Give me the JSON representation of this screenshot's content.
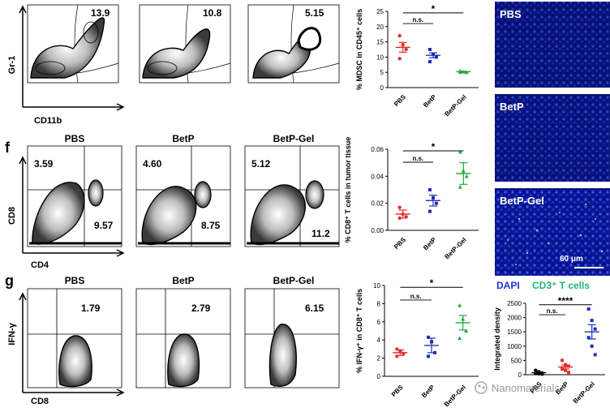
{
  "row_e": {
    "y_axis_label": "Gr-1",
    "x_axis_label": "CD11b",
    "values": [
      "13.9",
      "10.8",
      "5.15"
    ]
  },
  "row_f": {
    "letter": "f",
    "headers": [
      "PBS",
      "BetP",
      "BetP-Gel"
    ],
    "y_axis_label": "CD8",
    "x_axis_label": "CD4",
    "upper_left": [
      "3.59",
      "4.60",
      "5.12"
    ],
    "lower_right": [
      "9.57",
      "8.75",
      "11.2"
    ]
  },
  "row_g": {
    "letter": "g",
    "headers": [
      "PBS",
      "BetP",
      "BetP-Gel"
    ],
    "y_axis_label": "IFN-γ",
    "x_axis_label": "CD8",
    "values": [
      "1.79",
      "2.79",
      "6.15"
    ]
  },
  "images": {
    "labels": [
      "PBS",
      "BetP",
      "BetP-Gel"
    ],
    "scale_bar": "60 μm",
    "legend_dapi": "DAPI",
    "legend_cd3": "CD3⁺ T cells",
    "colors": {
      "dapi": "#1e2fd8",
      "cd3": "#22b573",
      "background": "#06082e"
    }
  },
  "watermark": "Nanomaterials",
  "chart_data": [
    {
      "type": "scatter",
      "ylabel": "% MDSC in CD45⁺ cells",
      "categories": [
        "PBS",
        "BetP",
        "BetP-Gel"
      ],
      "ylim": [
        0,
        25
      ],
      "yticks": [
        0,
        5,
        10,
        15,
        20,
        25
      ],
      "colors": [
        "#e03030",
        "#1f2fb8",
        "#23a83a"
      ],
      "points": [
        [
          17,
          14,
          12.5,
          9.5
        ],
        [
          12.5,
          11,
          10,
          8.5
        ],
        [
          5.5,
          5.2,
          5.0,
          5.1
        ]
      ],
      "mean": [
        13.2,
        10.6,
        5.2
      ],
      "sem": [
        1.6,
        0.8,
        0.15
      ],
      "significance": [
        {
          "from": "PBS",
          "to": "BetP",
          "label": "n.s."
        },
        {
          "from": "PBS",
          "to": "BetP-Gel",
          "label": "*"
        }
      ]
    },
    {
      "type": "scatter",
      "ylabel": "% CD8⁺ T cells in tumor tissue",
      "categories": [
        "PBS",
        "BetP",
        "BetP-Gel"
      ],
      "ylim": [
        0,
        0.06
      ],
      "yticks": [
        0.0,
        0.02,
        0.04,
        0.06
      ],
      "colors": [
        "#e03030",
        "#1f2fb8",
        "#23a83a"
      ],
      "points": [
        [
          0.017,
          0.012,
          0.01,
          0.009
        ],
        [
          0.03,
          0.024,
          0.02,
          0.014
        ],
        [
          0.058,
          0.044,
          0.04,
          0.032
        ]
      ],
      "mean": [
        0.012,
        0.022,
        0.042
      ],
      "sem": [
        0.003,
        0.004,
        0.008
      ],
      "significance": [
        {
          "from": "PBS",
          "to": "BetP",
          "label": "n.s."
        },
        {
          "from": "PBS",
          "to": "BetP-Gel",
          "label": "*"
        }
      ]
    },
    {
      "type": "scatter",
      "ylabel": "% IFN-γ⁺ in CD8⁺ T cells",
      "categories": [
        "PBS",
        "BetP",
        "BetP-Gel"
      ],
      "ylim": [
        0,
        10
      ],
      "yticks": [
        0,
        2,
        4,
        6,
        8,
        10
      ],
      "colors": [
        "#e03030",
        "#1f2fb8",
        "#23a83a"
      ],
      "points": [
        [
          3.0,
          2.8,
          2.5,
          2.2
        ],
        [
          4.3,
          3.8,
          2.6,
          2.2
        ],
        [
          7.8,
          6.3,
          5.0,
          4.2
        ]
      ],
      "mean": [
        2.6,
        3.4,
        5.9
      ],
      "sem": [
        0.3,
        0.8,
        0.8
      ],
      "significance": [
        {
          "from": "PBS",
          "to": "BetP",
          "label": "n.s."
        },
        {
          "from": "PBS",
          "to": "BetP-Gel",
          "label": "*"
        }
      ]
    },
    {
      "type": "scatter",
      "ylabel": "Integrated density",
      "categories": [
        "PBS",
        "BetP",
        "BetP-Gel"
      ],
      "ylim": [
        0,
        2500
      ],
      "yticks": [
        0,
        500,
        1000,
        1500,
        2000,
        2500
      ],
      "colors": [
        "#000000",
        "#e03030",
        "#1f2fb8"
      ],
      "points": [
        [
          150,
          100,
          60,
          40,
          30,
          20
        ],
        [
          500,
          350,
          300,
          200,
          150,
          80
        ],
        [
          2300,
          1900,
          1600,
          1300,
          1000,
          700
        ]
      ],
      "mean": [
        70,
        270,
        1500
      ],
      "sem": [
        20,
        70,
        250
      ],
      "significance": [
        {
          "from": "PBS",
          "to": "BetP",
          "label": "n.s."
        },
        {
          "from": "PBS",
          "to": "BetP-Gel",
          "label": "****"
        }
      ]
    }
  ]
}
